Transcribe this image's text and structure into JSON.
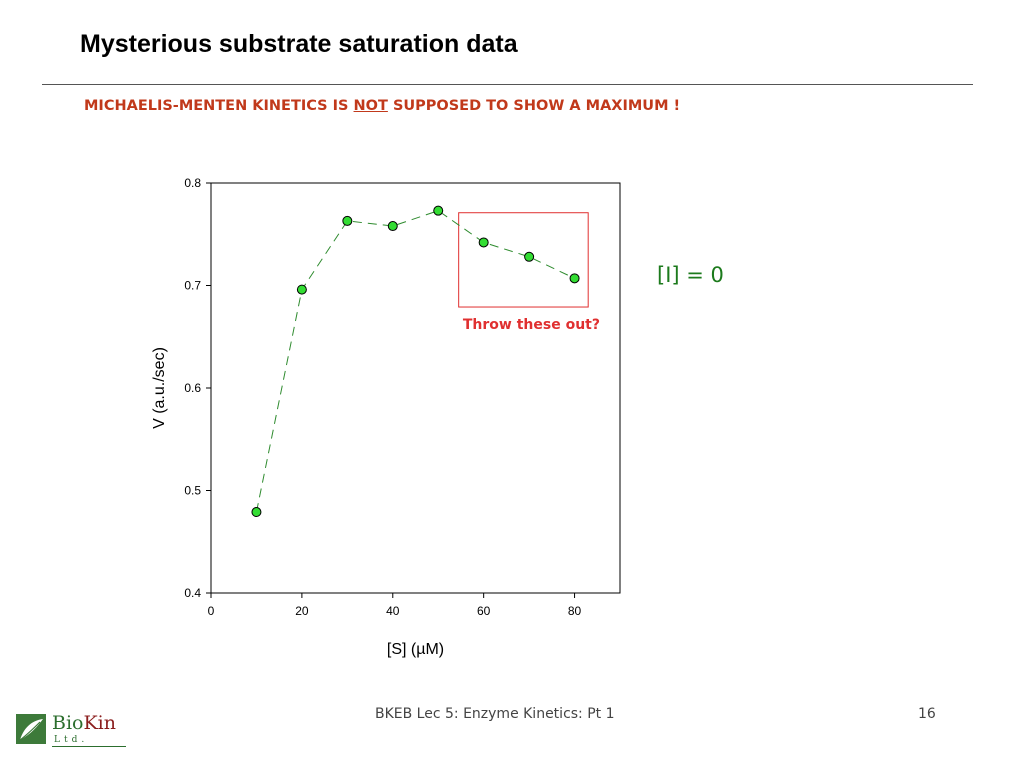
{
  "slide": {
    "title": "Mysterious substrate saturation data",
    "subtitle_pre": "MICHAELIS-MENTEN KINETICS IS ",
    "subtitle_emph": "NOT",
    "subtitle_post": " SUPPOSED TO SHOW A MAXIMUM !",
    "subtitle_color": "#c1391b",
    "legend_note": "[I] = 0",
    "footer": "BKEB Lec 5: Enzyme Kinetics: Pt 1",
    "page_number": "16",
    "logo_name_a": "Bio",
    "logo_name_b": "Kin",
    "logo_sub": "Ltd."
  },
  "chart_data": {
    "type": "scatter",
    "title": "",
    "xlabel": "[S] (µM)",
    "ylabel": "V (a.u./sec)",
    "xlim": [
      0,
      90
    ],
    "ylim": [
      0.4,
      0.8
    ],
    "x_ticks": [
      0,
      20,
      40,
      60,
      80
    ],
    "y_ticks": [
      0.4,
      0.5,
      0.6,
      0.7,
      0.8
    ],
    "x_tick_labels": [
      "0",
      "20",
      "40",
      "60",
      "80"
    ],
    "y_tick_labels": [
      "0.4",
      "0.5",
      "0.6",
      "0.7",
      "0.8"
    ],
    "grid": false,
    "connect_points": "dashed",
    "marker_color": "#33dd33",
    "line_color": "#2e8b2e",
    "series": [
      {
        "x": [
          10,
          20,
          30,
          40,
          50,
          60,
          70,
          80
        ],
        "y": [
          0.479,
          0.696,
          0.763,
          0.758,
          0.773,
          0.742,
          0.728,
          0.707
        ]
      }
    ],
    "highlight_box": {
      "x_range": [
        54.5,
        83
      ],
      "y_range": [
        0.679,
        0.771
      ],
      "color": "#e03030",
      "label": "Throw these out?"
    }
  }
}
